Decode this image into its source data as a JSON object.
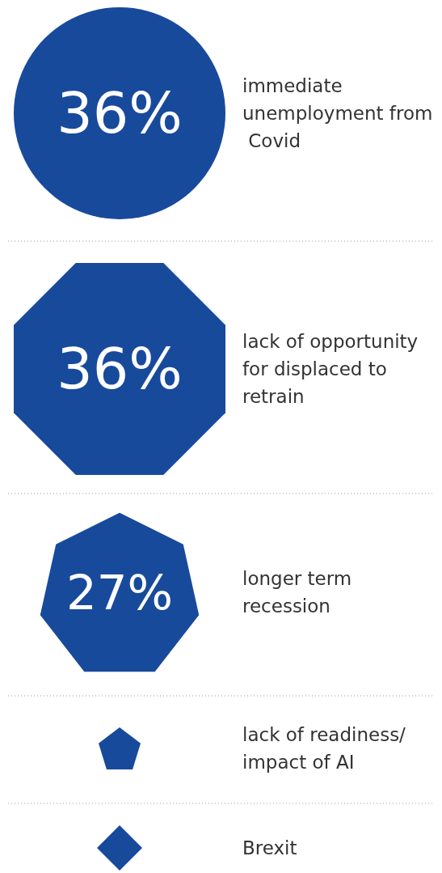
{
  "chart_data": {
    "type": "other",
    "categories": [
      "immediate unemployment from Covid",
      "lack of opportunity for displaced to retrain",
      "longer term recession",
      "lack of readiness/ impact of AI",
      "Brexit"
    ],
    "values": [
      36,
      36,
      27,
      null,
      null
    ],
    "value_labels": [
      "36%",
      "36%",
      "27%",
      null,
      null
    ],
    "color": "#184a9c"
  }
}
